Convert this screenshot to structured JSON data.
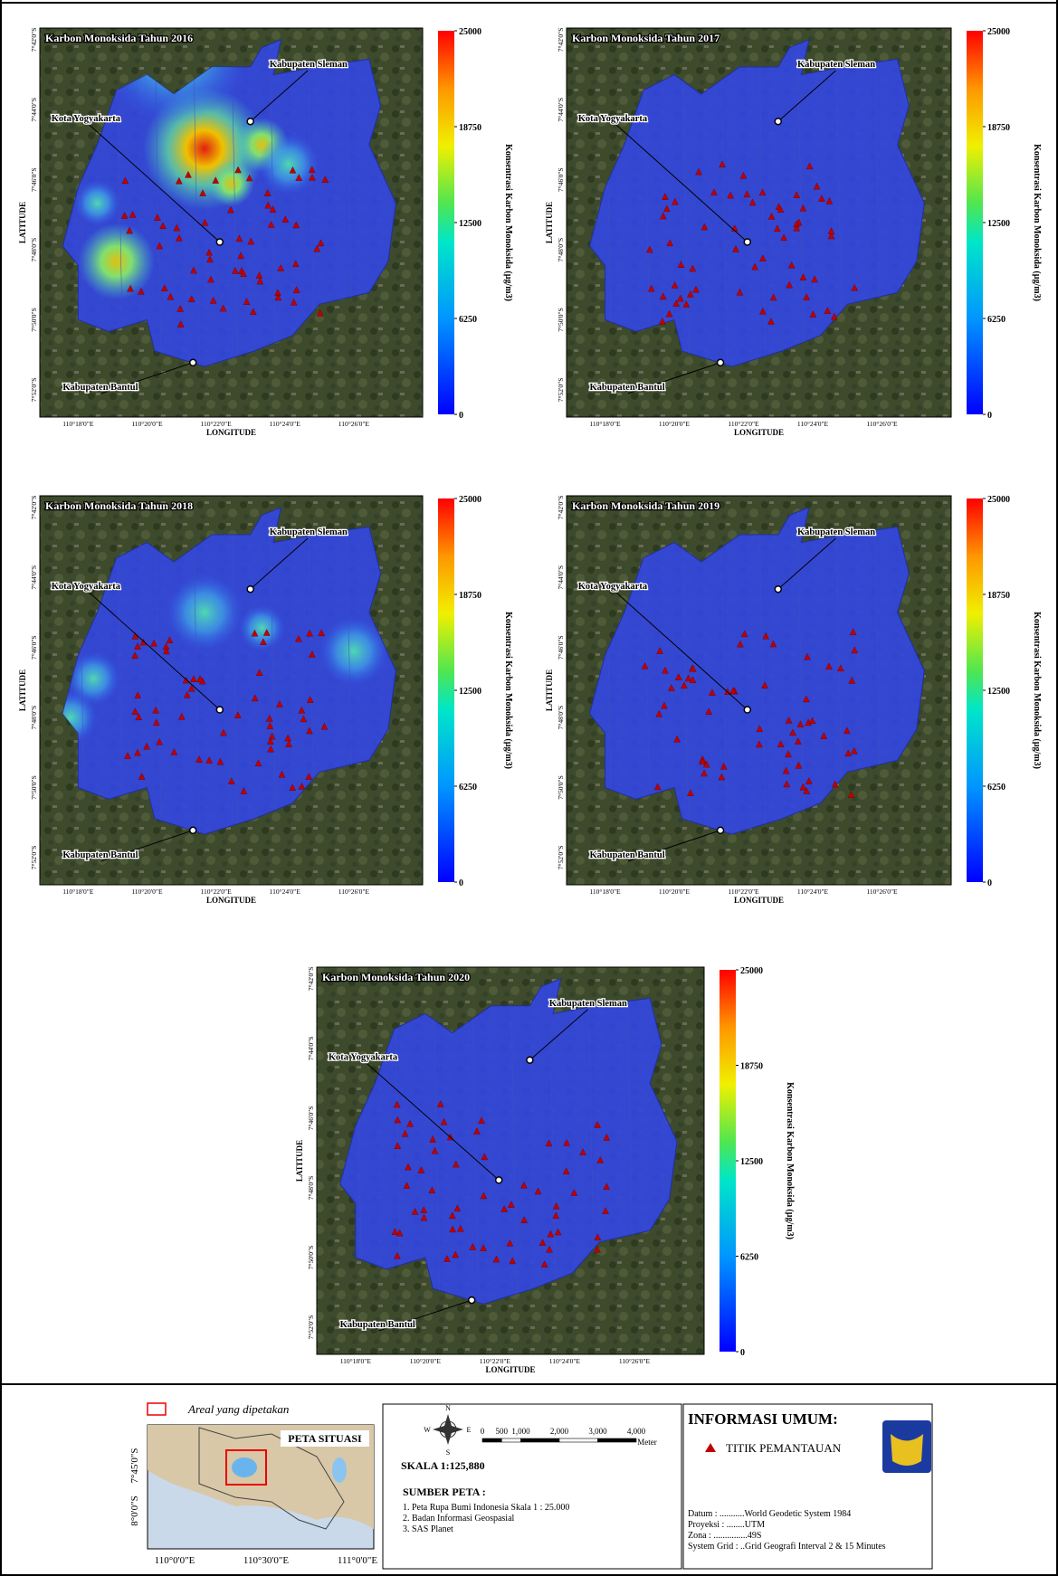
{
  "panels": [
    {
      "title": "Karbon Monoksida Tahun 2016"
    },
    {
      "title": "Karbon Monoksida Tahun 2017"
    },
    {
      "title": "Karbon Monoksida Tahun 2018"
    },
    {
      "title": "Karbon Monoksida Tahun 2019"
    },
    {
      "title": "Karbon Monoksida Tahun 2020"
    }
  ],
  "places": {
    "sleman": "Kabupaten Sleman",
    "kota": "Kota Yogyakarta",
    "bantul": "Kabupaten Bantul"
  },
  "axes": {
    "x_label": "LONGITUDE",
    "y_label": "LATITUDE",
    "lon_ticks": [
      "110°18'0\"E",
      "110°20'0\"E",
      "110°22'0\"E",
      "110°24'0\"E",
      "110°26'0\"E"
    ],
    "lat_ticks": [
      "7°42'0\"S",
      "7°44'0\"S",
      "7°46'0\"S",
      "7°48'0\"S",
      "7°50'0\"S",
      "7°52'0\"S"
    ]
  },
  "colorbar": {
    "label": "Konsentrasi Karbon Monoksida (µg/m3)",
    "ticks": [
      0,
      6250,
      12500,
      18750,
      25000
    ]
  },
  "inset": {
    "legend": "Areal yang dipetakan",
    "title": "PETA SITUASI",
    "lat_ticks": [
      "7°45'0\"S",
      "8°0'0\"S"
    ],
    "lon_ticks": [
      "110°0'0\"E",
      "110°30'0\"E",
      "111°0'0\"E"
    ]
  },
  "scale": {
    "north": "N",
    "east": "E",
    "west": "W",
    "south": "S",
    "bar_ticks": [
      "0",
      "500",
      "1,000",
      "2,000",
      "3,000",
      "4,000"
    ],
    "unit": "Meter",
    "ratio": "SKALA 1:125,880"
  },
  "sources": {
    "title": "SUMBER PETA :",
    "items": [
      "1. Peta Rupa Bumi Indonesia Skala 1 : 25.000",
      "2. Badan Informasi Geospasial",
      "3. SAS Planet"
    ]
  },
  "info": {
    "title": "INFORMASI UMUM:",
    "legend": "TITIK PEMANTAUAN",
    "lines": [
      "Datum : ...........World Geodetic System 1984",
      "Proyeksi : ........UTM",
      "Zona : ...............49S",
      "System Grid : ..Grid Geografi Interval 2 & 15 Minutes"
    ]
  }
}
